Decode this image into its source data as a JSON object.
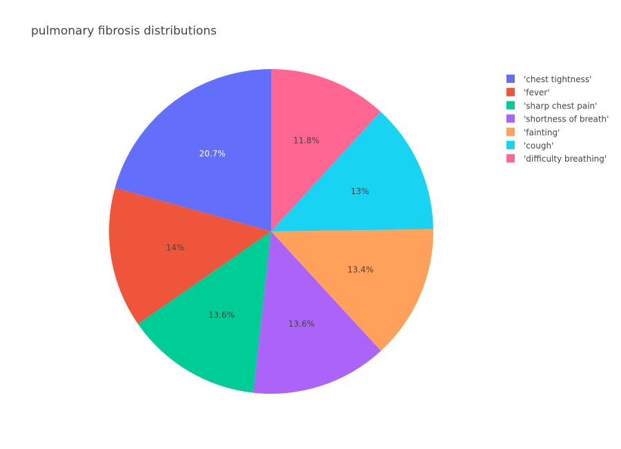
{
  "chart_data": {
    "type": "pie",
    "title": "pulmonary fibrosis distributions",
    "labels": [
      "'chest tightness'",
      "'fever'",
      "'sharp chest pain'",
      "'shortness of breath'",
      "'fainting'",
      "'cough'",
      "'difficulty breathing'"
    ],
    "values": [
      20.7,
      14.0,
      13.6,
      13.6,
      13.4,
      13.0,
      11.8
    ],
    "value_labels": [
      "20.7%",
      "14%",
      "13.6%",
      "13.6%",
      "13.4%",
      "13%",
      "11.8%"
    ],
    "colors": [
      "#636efa",
      "#ef553b",
      "#00cc96",
      "#ab63fa",
      "#ffa15a",
      "#19d3f3",
      "#ff6692"
    ],
    "label_colors": [
      "#ffffff",
      "#444444",
      "#444444",
      "#444444",
      "#444444",
      "#444444",
      "#444444"
    ],
    "direction": "counterclockwise",
    "legend_position": "top-right"
  }
}
